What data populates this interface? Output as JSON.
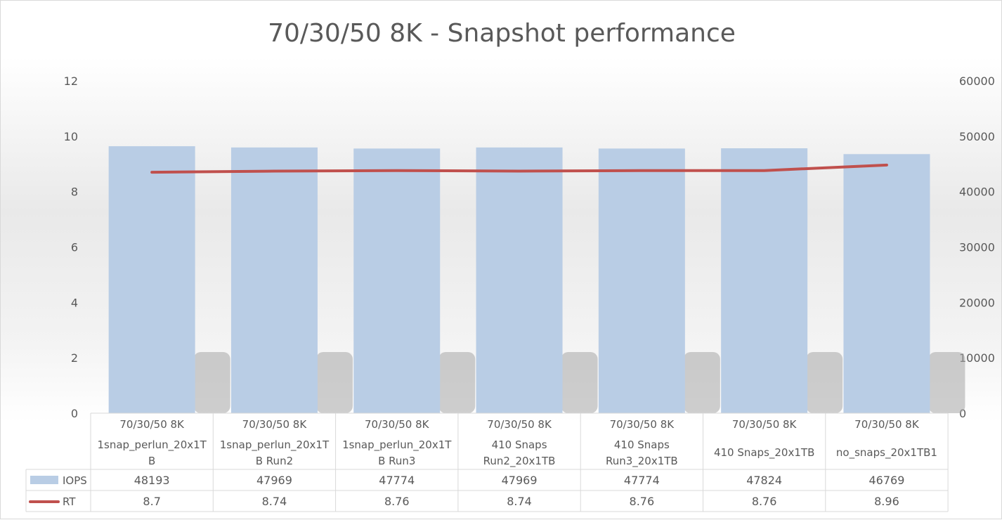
{
  "chart_data": {
    "type": "bar",
    "title": "70/30/50 8K - Snapshot performance",
    "categories": [
      [
        "70/30/50 8K",
        "1snap_perlun_20x1T",
        "B"
      ],
      [
        "70/30/50 8K",
        "1snap_perlun_20x1T",
        "B Run2"
      ],
      [
        "70/30/50 8K",
        "1snap_perlun_20x1T",
        "B Run3"
      ],
      [
        "70/30/50 8K",
        "410 Snaps",
        "Run2_20x1TB"
      ],
      [
        "70/30/50 8K",
        "410 Snaps",
        "Run3_20x1TB"
      ],
      [
        "70/30/50 8K",
        "410 Snaps_20x1TB"
      ],
      [
        "70/30/50 8K",
        "no_snaps_20x1TB1"
      ]
    ],
    "series": [
      {
        "name": "IOPS",
        "type": "bar",
        "axis": "right",
        "color": "#b9cde5",
        "values": [
          48193,
          47969,
          47774,
          47969,
          47774,
          47824,
          46769
        ],
        "display": [
          "48193",
          "47969",
          "47774",
          "47969",
          "47774",
          "47824",
          "46769"
        ]
      },
      {
        "name": "RT",
        "type": "line",
        "axis": "left",
        "color": "#c0504d",
        "values": [
          8.7,
          8.74,
          8.76,
          8.74,
          8.76,
          8.76,
          8.96
        ],
        "display": [
          "8.7",
          "8.74",
          "8.76",
          "8.74",
          "8.76",
          "8.76",
          "8.96"
        ]
      }
    ],
    "y_left": {
      "ylim": [
        0,
        12
      ],
      "ticks": [
        "0",
        "2",
        "4",
        "6",
        "8",
        "10",
        "12"
      ]
    },
    "y_right": {
      "ylim": [
        0,
        60000
      ],
      "ticks": [
        "0",
        "10000",
        "20000",
        "30000",
        "40000",
        "50000",
        "60000"
      ]
    },
    "legend": "data-table",
    "grid": false
  }
}
